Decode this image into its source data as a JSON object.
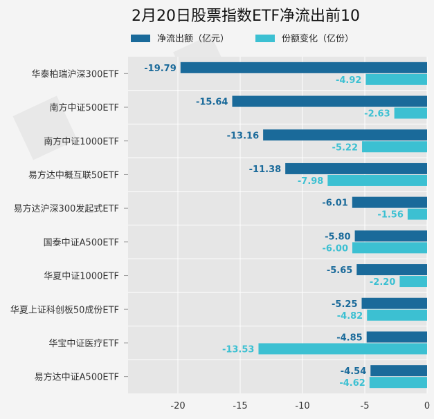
{
  "chart_data": {
    "type": "bar",
    "orientation": "horizontal",
    "title": "2月20日股票指数ETF净流出前10",
    "xlabel": "",
    "ylabel": "",
    "xlim": [
      -24,
      0
    ],
    "xticks": [
      -20,
      -15,
      -10,
      -5,
      0
    ],
    "xtick_labels": [
      "-20",
      "-15",
      "-10",
      "-5",
      "0"
    ],
    "grid": true,
    "legend_position": "top-center",
    "categories": [
      "华泰柏瑞沪深300ETF",
      "南方中证500ETF",
      "南方中证1000ETF",
      "易方达中概互联50ETF",
      "易方达沪深300发起式ETF",
      "国泰中证A500ETF",
      "华夏中证1000ETF",
      "华夏上证科创板50成份ETF",
      "华宝中证医疗ETF",
      "易方达中证A500ETF"
    ],
    "series": [
      {
        "name": "净流出额（亿元）",
        "color": "#1a6a9a",
        "values": [
          -19.79,
          -15.64,
          -13.16,
          -11.38,
          -6.01,
          -5.8,
          -5.65,
          -5.25,
          -4.85,
          -4.54
        ],
        "labels": [
          "-19.79",
          "-15.64",
          "-13.16",
          "-11.38",
          "-6.01",
          "-5.80",
          "-5.65",
          "-5.25",
          "-4.85",
          "-4.54"
        ]
      },
      {
        "name": "份额变化（亿份）",
        "color": "#3cc0d2",
        "values": [
          -4.92,
          -2.63,
          -5.22,
          -7.98,
          -1.56,
          -6.0,
          -2.2,
          -4.82,
          -13.53,
          -4.62
        ],
        "labels": [
          "-4.92",
          "-2.63",
          "-5.22",
          "-7.98",
          "-1.56",
          "-6.00",
          "-2.20",
          "-4.82",
          "-13.53",
          "-4.62"
        ]
      }
    ],
    "colors": {
      "background": "#f4f4f4",
      "plot_background": "#e6e6e6",
      "grid": "#ffffff",
      "title": "#111111",
      "tick_label": "#333333"
    }
  }
}
